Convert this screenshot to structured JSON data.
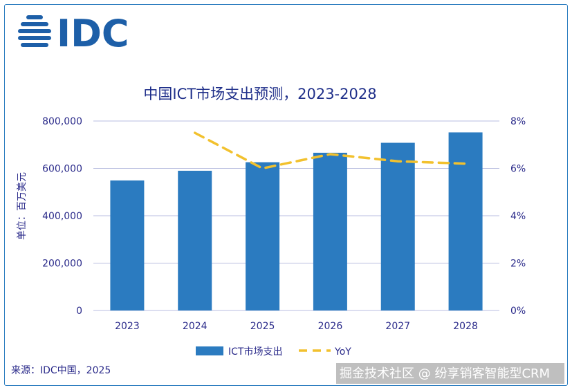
{
  "logo": {
    "text": "IDC"
  },
  "source": "来源：IDC中国，2025",
  "watermark": "掘金技术社区 @ 纷享销客智能型CRM",
  "colors": {
    "bar": "#2b7bc0",
    "line": "#f2c12e",
    "axis_text": "#2a2a8a",
    "grid": "#b9bde0"
  },
  "chart_data": {
    "type": "bar",
    "title": "中国ICT市场支出预测，2023-2028",
    "ylabel": "单位：百万美元",
    "categories": [
      "2023",
      "2024",
      "2025",
      "2026",
      "2027",
      "2028"
    ],
    "y_ticks": [
      "0",
      "200,000",
      "400,000",
      "600,000",
      "800,000"
    ],
    "y2_ticks": [
      "0%",
      "2%",
      "4%",
      "6%",
      "8%"
    ],
    "ylim": [
      0,
      800000
    ],
    "y2lim": [
      0,
      8
    ],
    "grid": true,
    "legend_position": "bottom",
    "series": [
      {
        "name": "ICT市场支出",
        "type": "bar",
        "axis": "left",
        "values": [
          549000,
          590000,
          626000,
          666000,
          708000,
          752000
        ]
      },
      {
        "name": "YoY",
        "type": "line",
        "style": "dashed",
        "axis": "right",
        "values": [
          null,
          7.5,
          6.0,
          6.6,
          6.3,
          6.2
        ]
      }
    ]
  }
}
